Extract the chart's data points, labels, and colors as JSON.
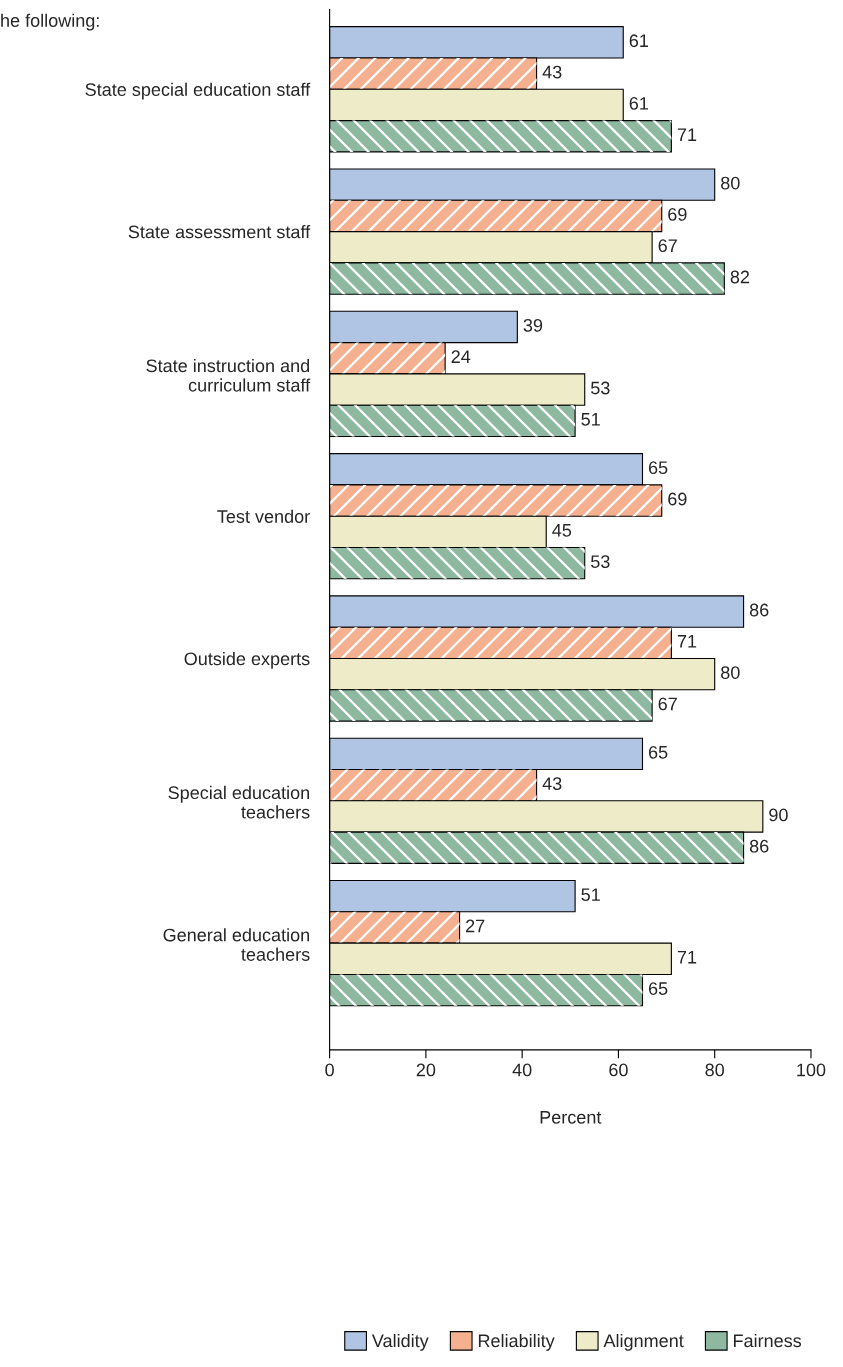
{
  "chart_data": {
    "type": "bar",
    "orientation": "horizontal",
    "title": "he following:",
    "xlabel": "Percent",
    "categories": [
      "State special education staff",
      "State assessment staff",
      "State instruction and\ncurriculum staff",
      "Test vendor",
      "Outside experts",
      "Special education\nteachers",
      "General education\nteachers"
    ],
    "series": [
      {
        "name": "Validity",
        "color": "#b0c4e4",
        "values": [
          61,
          80,
          39,
          65,
          86,
          65,
          51
        ]
      },
      {
        "name": "Reliability",
        "color": "#f5b090",
        "values": [
          43,
          69,
          24,
          69,
          71,
          43,
          27
        ]
      },
      {
        "name": "Alignment",
        "color": "#eeebc8",
        "values": [
          61,
          67,
          53,
          45,
          80,
          90,
          71
        ]
      },
      {
        "name": "Fairness",
        "color": "#8fb8a0",
        "values": [
          71,
          82,
          51,
          53,
          67,
          86,
          65
        ]
      }
    ],
    "xlim": [
      0,
      100
    ],
    "xticks": [
      0,
      20,
      40,
      60,
      80,
      100
    ],
    "data_labels": true,
    "grid": false,
    "legend": "bottom"
  }
}
